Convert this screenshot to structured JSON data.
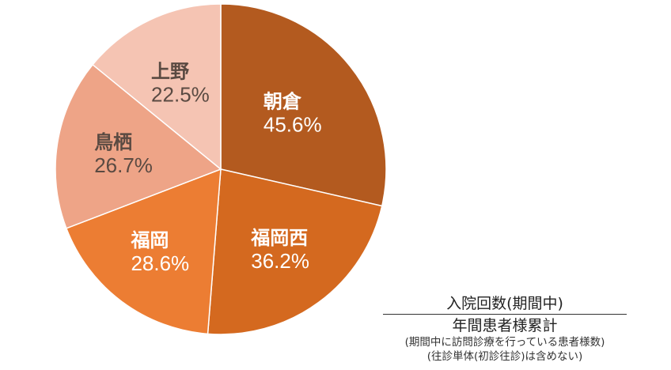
{
  "chart_data": {
    "type": "pie",
    "slices": [
      {
        "name": "朝倉",
        "value": 45.6,
        "label": "45.6%",
        "color": "#B35A1F",
        "text_color": "#FFFFFF"
      },
      {
        "name": "福岡西",
        "value": 36.2,
        "label": "36.2%",
        "color": "#D4691F",
        "text_color": "#FFFFFF"
      },
      {
        "name": "福岡",
        "value": 28.6,
        "label": "28.6%",
        "color": "#EC7D33",
        "text_color": "#FFFFFF"
      },
      {
        "name": "鳥栖",
        "value": 26.7,
        "label": "26.7%",
        "color": "#EEA487",
        "text_color": "#5A4A42"
      },
      {
        "name": "上野",
        "value": 22.5,
        "label": "22.5%",
        "color": "#F5C4B3",
        "text_color": "#5A4A42"
      }
    ],
    "start": "12 o'clock",
    "direction": "clockwise"
  },
  "legend": {
    "line1": "入院回数(期間中)",
    "line2": "年間患者様累計",
    "note1": "(期間中に訪問診療を行っている患者様数)",
    "note2": "(往診単体(初診往診)は含めない)"
  }
}
